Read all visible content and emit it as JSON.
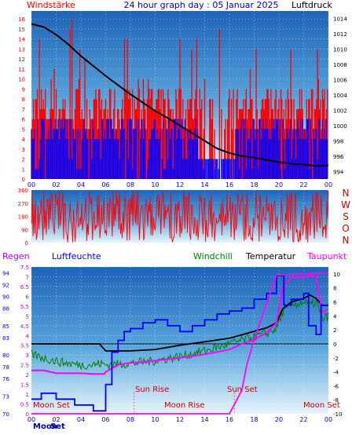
{
  "chart_data": [
    {
      "type": "line",
      "title": "24 hour graph day : 05 Januar 2025",
      "left_axis_title": "Windstärke",
      "right_axis_title": "Luftdruck",
      "x_ticks": [
        "00",
        "02",
        "04",
        "06",
        "08",
        "10",
        "12",
        "14",
        "16",
        "18",
        "20",
        "22",
        "00"
      ],
      "y_left_ticks": [
        "0",
        "1",
        "2",
        "3",
        "4",
        "5",
        "6",
        "7",
        "8",
        "9",
        "10",
        "11",
        "12",
        "13",
        "14",
        "15",
        "16"
      ],
      "y_left_range": [
        0,
        16.8
      ],
      "y_right_ticks": [
        "994",
        "996",
        "998",
        "1000",
        "1002",
        "1004",
        "1006",
        "1008",
        "1010",
        "1012",
        "1014"
      ],
      "y_right_range": [
        993,
        1015
      ],
      "pressure_series": {
        "x": [
          0,
          1,
          2,
          3,
          4,
          5,
          6,
          7,
          8,
          9,
          10,
          11,
          12,
          13,
          14,
          15,
          16,
          17,
          18,
          19,
          20,
          21,
          22,
          23,
          24
        ],
        "y": [
          1013.3,
          1012.9,
          1011.9,
          1010.6,
          1009.1,
          1007.8,
          1006.5,
          1005.3,
          1004.1,
          1003.0,
          1001.9,
          1001.0,
          1000.0,
          999.0,
          998.0,
          997.0,
          996.4,
          996.0,
          995.8,
          995.5,
          995.2,
          995.0,
          994.9,
          994.7,
          994.8
        ]
      },
      "wind_mean_level": 5,
      "gust_level": 7,
      "colors": {
        "pressure": "#000000",
        "gusts": "#ff0000",
        "wind": "#0000ff"
      }
    },
    {
      "type": "line",
      "y_left_ticks": [
        "0",
        "90",
        "180",
        "270",
        "360"
      ],
      "y_left_range": [
        0,
        360
      ],
      "right_labels": [
        "N",
        "W",
        "S",
        "O",
        "N"
      ],
      "series_color": "#ff0000"
    },
    {
      "type": "line",
      "labels": {
        "regen": "Regen",
        "luftfeuchte": "Luftfeuchte",
        "windchill": "Windchill",
        "temperatur": "Temperatur",
        "taupunkt": "Taupunkt"
      },
      "y_rain_ticks": [
        "0",
        "0.5",
        "1",
        "1.5",
        "2",
        "2.5",
        "3",
        "3.5",
        "4",
        "4.5",
        "5",
        "5.5",
        "6",
        "6.5",
        "7",
        "7.5"
      ],
      "y_rain_range": [
        0,
        7.5
      ],
      "y_hum_ticks": [
        "70",
        "73",
        "76",
        "78",
        "80",
        "83",
        "85",
        "88",
        "90",
        "92",
        "94"
      ],
      "y_hum_range": [
        70,
        95
      ],
      "y_temp_ticks": [
        "-10",
        "-8",
        "-6",
        "-4",
        "-2",
        "0",
        "2",
        "4",
        "6",
        "8",
        "10"
      ],
      "y_temp_range": [
        -10,
        11
      ],
      "x_ticks": [
        "00",
        "02",
        "04",
        "06",
        "08",
        "10",
        "12",
        "14",
        "16",
        "18",
        "20",
        "22",
        "00"
      ],
      "temperature": {
        "x": [
          0,
          2,
          4,
          5.5,
          6,
          8,
          10,
          12,
          14,
          16,
          17,
          18,
          19,
          19.8,
          20.3,
          21,
          22,
          22.5,
          23,
          23.5,
          24
        ],
        "y": [
          0,
          0,
          0,
          0,
          -1,
          -1,
          -0.8,
          -0.2,
          0.3,
          0.8,
          1.3,
          1.8,
          2.3,
          3,
          5,
          6,
          6.5,
          7,
          6.5,
          5.5,
          5.5
        ]
      },
      "windchill": {
        "x": [
          0,
          1,
          2,
          3,
          4,
          5,
          5.5,
          6,
          8,
          10,
          12,
          14,
          16,
          17,
          18,
          19,
          19.8,
          20.3,
          21,
          22,
          22.5,
          23,
          23.5,
          24
        ],
        "y": [
          -1.5,
          -2,
          -2.5,
          -2.8,
          -3,
          -3,
          -2.8,
          -3,
          -2.8,
          -2.4,
          -1.8,
          -1,
          0,
          0.5,
          1,
          1.5,
          2.2,
          4.5,
          5.5,
          6,
          5.5,
          6,
          3.5,
          4
        ]
      },
      "dewpoint": {
        "x": [
          0,
          1,
          2,
          3,
          4,
          5,
          5.9,
          6,
          7,
          8,
          9,
          10,
          12,
          14,
          16,
          17,
          18,
          19,
          19.8,
          20.3,
          21,
          22,
          22.5,
          23,
          23.5,
          24
        ],
        "y": [
          -3.8,
          -3.8,
          -4.2,
          -4.2,
          -4.2,
          -4.3,
          -4.3,
          -4,
          -3,
          -2.7,
          -2.6,
          -2.4,
          -2,
          -1.5,
          -0.8,
          0,
          0.6,
          1.6,
          3,
          8,
          9.5,
          9.5,
          9.8,
          9.5,
          4.5,
          5
        ]
      },
      "humidity": {
        "x": [
          0,
          0.8,
          0.8,
          2,
          2,
          3.5,
          3.5,
          5,
          5,
          6,
          6,
          6.5,
          6.5,
          7,
          7,
          7.5,
          7.5,
          8,
          8,
          9,
          9,
          10,
          10,
          11,
          11,
          12,
          12,
          13,
          13,
          14,
          14,
          15,
          15,
          16,
          16,
          17,
          17,
          18,
          18,
          19,
          19,
          19.8,
          19.8,
          20.4,
          20.4,
          21,
          21,
          22,
          22,
          22.4,
          22.4,
          23,
          23,
          23.4,
          23.4,
          24
        ],
        "y": [
          72.5,
          72.5,
          73.5,
          73.5,
          72.5,
          72.5,
          71.5,
          71.5,
          70.5,
          70.5,
          75,
          75,
          80.5,
          80.5,
          82.5,
          82.5,
          84,
          84,
          84.5,
          84.5,
          85.5,
          85.5,
          86,
          86,
          85,
          85,
          84,
          84,
          85,
          85,
          86,
          86,
          87,
          87,
          87.5,
          87.5,
          88,
          88,
          89.5,
          89.5,
          90.5,
          90.5,
          93.5,
          93.5,
          88.5,
          88.5,
          89.5,
          89.5,
          90.5,
          90.5,
          85,
          85,
          83.5,
          83.5,
          88.5,
          88.5
        ]
      },
      "rain_total": {
        "x": [
          0,
          16,
          17,
          17.4,
          18,
          19.8,
          20.4,
          24
        ],
        "y": [
          0,
          0,
          1.2,
          2.5,
          3.8,
          7.1,
          7.1,
          7.2
        ]
      },
      "astro_labels": [
        "Moon Set",
        "Sun Rise",
        "Moon Rise",
        "Sun Set",
        "Moon Set"
      ],
      "bottom_labels": [
        "Moon",
        "Set"
      ],
      "colors": {
        "temperature": "#000000",
        "windchill": "#008000",
        "dewpoint": "#ff00ff",
        "humidity": "#0000ff",
        "rain": "#ff00ff",
        "regen_label": "#c000ff",
        "luftfeuchte_label": "#0000ff",
        "windchill_label": "#008000",
        "taupunkt_label": "#ff00ff"
      }
    }
  ]
}
